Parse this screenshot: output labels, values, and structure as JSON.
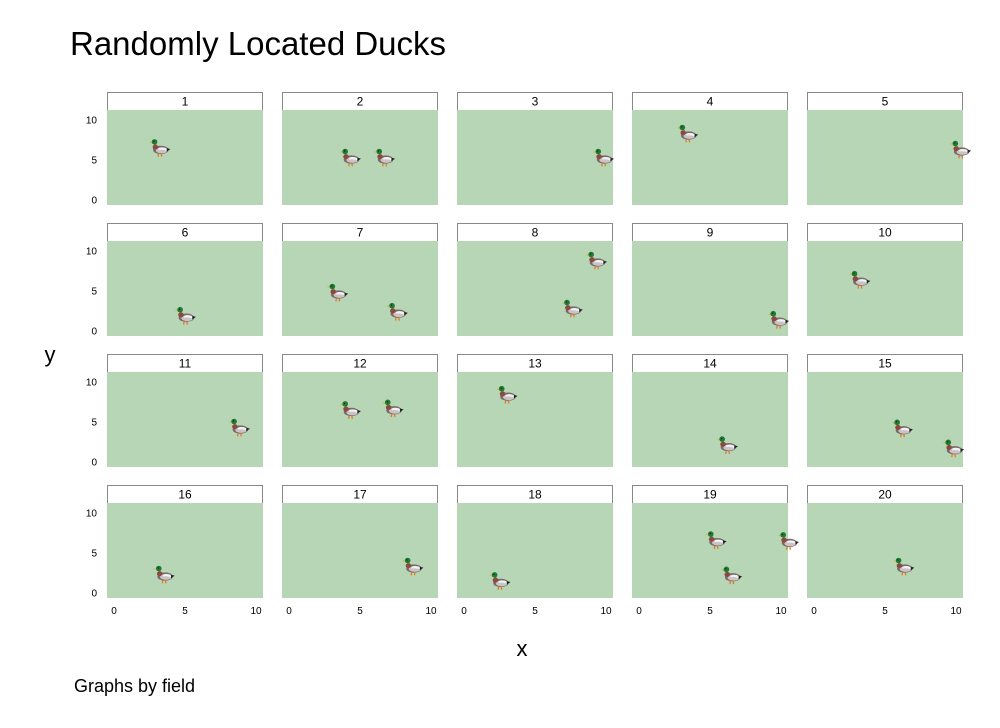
{
  "chart_data": {
    "type": "scatter",
    "title": "Randomly Located Ducks",
    "xlabel": "x",
    "ylabel": "y",
    "note": "Graphs by field",
    "marker": "duck-icon",
    "xlim": [
      0,
      10
    ],
    "ylim": [
      0,
      10
    ],
    "xticks": [
      0,
      5,
      10
    ],
    "yticks": [
      0,
      5,
      10
    ],
    "panel_background": "#b6d6b6",
    "layout": "4 rows x 5 columns",
    "panels": [
      {
        "field": "1",
        "points": [
          {
            "x": 3.2,
            "y": 6.6
          }
        ]
      },
      {
        "field": "2",
        "points": [
          {
            "x": 4.3,
            "y": 5.4
          },
          {
            "x": 6.7,
            "y": 5.4
          }
        ]
      },
      {
        "field": "3",
        "points": [
          {
            "x": 9.8,
            "y": 5.4
          }
        ]
      },
      {
        "field": "4",
        "points": [
          {
            "x": 3.4,
            "y": 8.4
          }
        ]
      },
      {
        "field": "5",
        "points": [
          {
            "x": 10.3,
            "y": 6.4
          }
        ]
      },
      {
        "field": "6",
        "points": [
          {
            "x": 5.0,
            "y": 2.0
          }
        ]
      },
      {
        "field": "7",
        "points": [
          {
            "x": 3.4,
            "y": 4.9
          },
          {
            "x": 7.6,
            "y": 2.5
          }
        ]
      },
      {
        "field": "8",
        "points": [
          {
            "x": 7.6,
            "y": 2.9
          },
          {
            "x": 9.3,
            "y": 8.9
          }
        ]
      },
      {
        "field": "9",
        "points": [
          {
            "x": 9.8,
            "y": 1.5
          }
        ]
      },
      {
        "field": "10",
        "points": [
          {
            "x": 3.2,
            "y": 6.5
          }
        ]
      },
      {
        "field": "11",
        "points": [
          {
            "x": 8.8,
            "y": 4.4
          }
        ]
      },
      {
        "field": "12",
        "points": [
          {
            "x": 4.3,
            "y": 6.6
          },
          {
            "x": 7.3,
            "y": 6.8
          }
        ]
      },
      {
        "field": "13",
        "points": [
          {
            "x": 3.0,
            "y": 8.5
          }
        ]
      },
      {
        "field": "14",
        "points": [
          {
            "x": 6.2,
            "y": 2.2
          }
        ]
      },
      {
        "field": "15",
        "points": [
          {
            "x": 6.2,
            "y": 4.3
          },
          {
            "x": 9.8,
            "y": 1.8
          }
        ]
      },
      {
        "field": "16",
        "points": [
          {
            "x": 3.5,
            "y": 2.4
          }
        ]
      },
      {
        "field": "17",
        "points": [
          {
            "x": 8.7,
            "y": 3.4
          }
        ]
      },
      {
        "field": "18",
        "points": [
          {
            "x": 2.5,
            "y": 1.6
          }
        ]
      },
      {
        "field": "19",
        "points": [
          {
            "x": 5.4,
            "y": 6.7
          },
          {
            "x": 6.5,
            "y": 2.3
          },
          {
            "x": 10.5,
            "y": 6.6
          }
        ]
      },
      {
        "field": "20",
        "points": [
          {
            "x": 6.3,
            "y": 3.4
          }
        ]
      }
    ]
  }
}
